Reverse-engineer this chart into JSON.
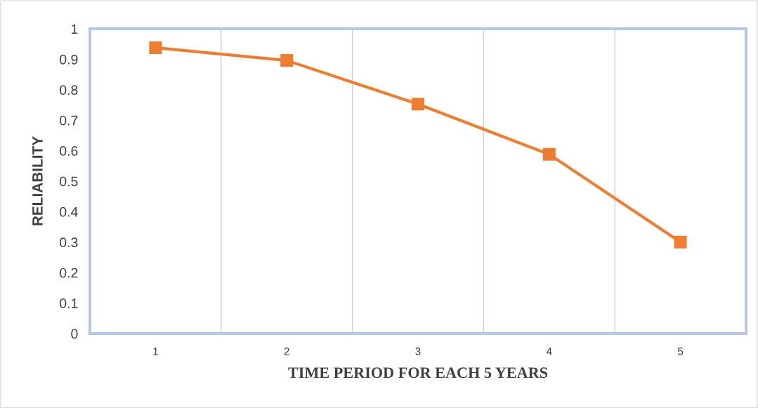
{
  "chart_data": {
    "type": "line",
    "xlabel": "TIME PERIOD FOR EACH 5 YEARS",
    "ylabel": "RELIABILITY",
    "categories": [
      "1",
      "2",
      "3",
      "4",
      "5"
    ],
    "series": [
      {
        "color": "#ed7d31",
        "values": [
          0.938,
          0.896,
          0.753,
          0.588,
          0.3
        ]
      }
    ],
    "ylim": [
      0,
      1
    ],
    "yticks": [
      0,
      0.1,
      0.2,
      0.3,
      0.4,
      0.5,
      0.6,
      0.7,
      0.8,
      0.9,
      1
    ],
    "grid": "x",
    "marker": "square",
    "line_style": "solid"
  }
}
